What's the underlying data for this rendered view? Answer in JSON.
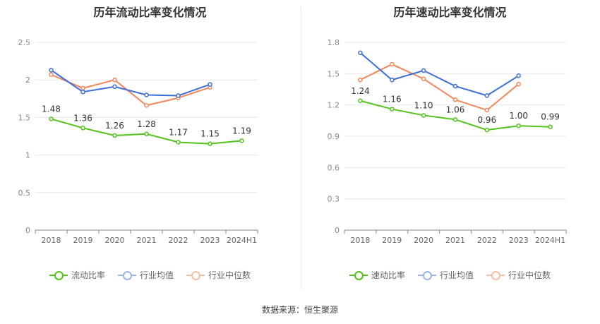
{
  "source_label": "数据来源：恒生聚源",
  "chart_data": [
    {
      "type": "line",
      "title": "历年流动比率变化情况",
      "categories": [
        "2018",
        "2019",
        "2020",
        "2021",
        "2022",
        "2023",
        "2024H1"
      ],
      "ylim": [
        0,
        2.5
      ],
      "yticks": [
        0,
        0.5,
        1,
        1.5,
        2,
        2.5
      ],
      "ytick_labels": [
        "0",
        "0.5",
        "1",
        "1.5",
        "2",
        "2.5"
      ],
      "series": [
        {
          "name": "流动比率",
          "color": "#52c41a",
          "values": [
            1.48,
            1.36,
            1.26,
            1.28,
            1.17,
            1.15,
            1.19
          ],
          "labels": [
            "1.48",
            "1.36",
            "1.26",
            "1.28",
            "1.17",
            "1.15",
            "1.19"
          ]
        },
        {
          "name": "行业均值",
          "color": "#3a6fd8",
          "values": [
            2.13,
            1.84,
            1.91,
            1.8,
            1.79,
            1.94,
            null
          ]
        },
        {
          "name": "行业中位数",
          "color": "#f4865a",
          "values": [
            2.07,
            1.89,
            2.0,
            1.66,
            1.76,
            1.9,
            null
          ]
        }
      ]
    },
    {
      "type": "line",
      "title": "历年速动比率变化情况",
      "categories": [
        "2018",
        "2019",
        "2020",
        "2021",
        "2022",
        "2023",
        "2024H1"
      ],
      "ylim": [
        0,
        1.8
      ],
      "yticks": [
        0,
        0.3,
        0.6,
        0.9,
        1.2,
        1.5,
        1.8
      ],
      "ytick_labels": [
        "0",
        "0.3",
        "0.6",
        "0.9",
        "1.2",
        "1.5",
        "1.8"
      ],
      "series": [
        {
          "name": "速动比率",
          "color": "#52c41a",
          "values": [
            1.24,
            1.16,
            1.1,
            1.06,
            0.96,
            1.0,
            0.99
          ],
          "labels": [
            "1.24",
            "1.16",
            "1.10",
            "1.06",
            "0.96",
            "1.00",
            "0.99"
          ]
        },
        {
          "name": "行业均值",
          "color": "#3a6fd8",
          "values": [
            1.7,
            1.44,
            1.53,
            1.38,
            1.29,
            1.48,
            null
          ]
        },
        {
          "name": "行业中位数",
          "color": "#f4865a",
          "values": [
            1.44,
            1.59,
            1.45,
            1.25,
            1.15,
            1.4,
            null
          ]
        }
      ]
    }
  ]
}
